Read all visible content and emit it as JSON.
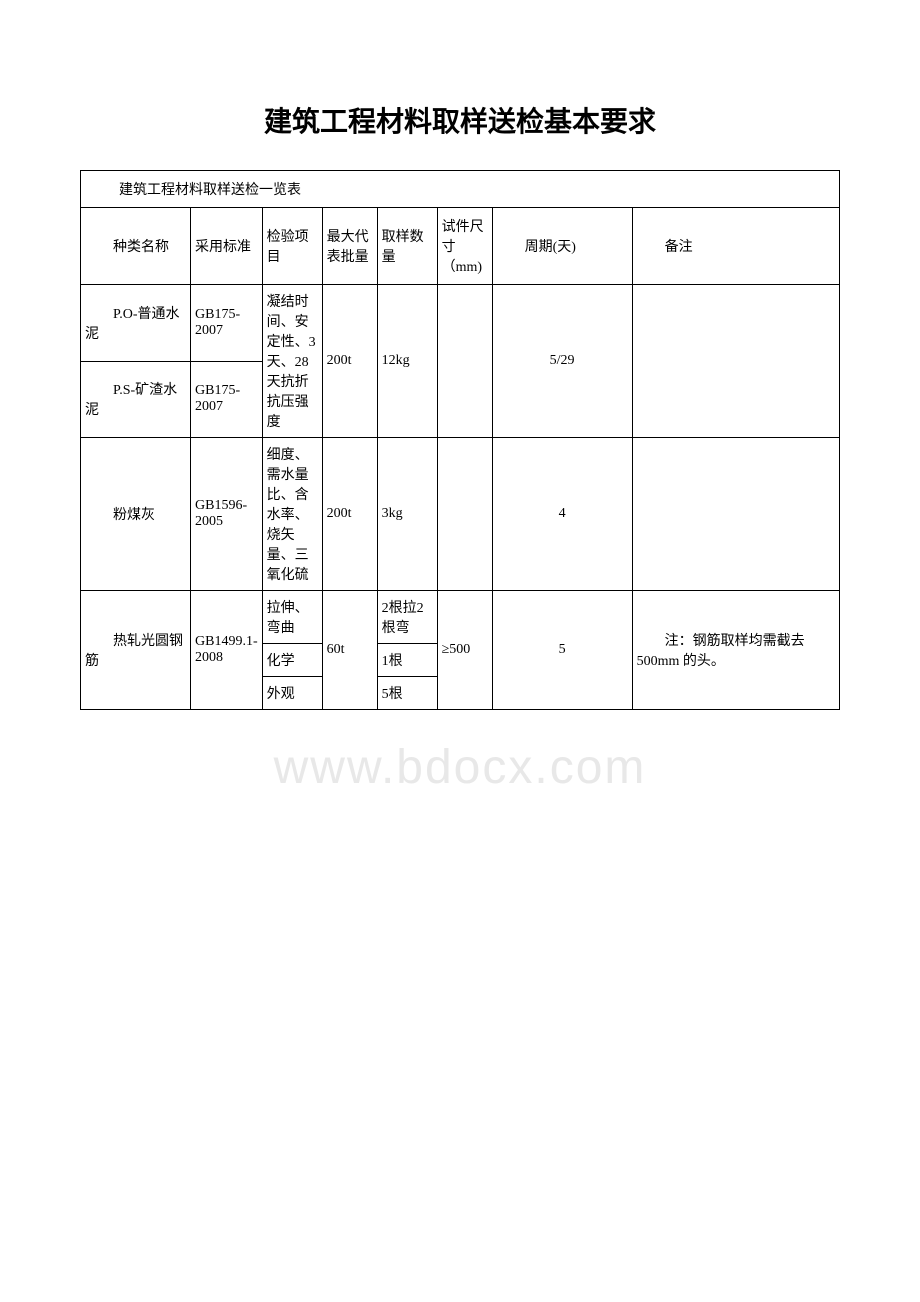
{
  "title": "建筑工程材料取样送检基本要求",
  "table_caption": "建筑工程材料取样送检一览表",
  "headers": {
    "name": "种类名称",
    "standard": "采用标准",
    "test_item": "检验项目",
    "max_batch": "最大代表批量",
    "sample_qty": "取样数量",
    "spec_size": "试件尺寸（mm)",
    "period": "周期(天)",
    "remark": "备注"
  },
  "rows": {
    "r1": {
      "name": "P.O-普通水泥",
      "standard": "GB175-2007",
      "test_item": "凝结时间、安定性、3天、28天抗折抗压强度",
      "max_batch": "200t",
      "sample_qty": "12kg",
      "spec_size": "",
      "period": "5/29",
      "remark": ""
    },
    "r2": {
      "name": "P.S-矿渣水泥",
      "standard": "GB175-2007"
    },
    "r3": {
      "name": "粉煤灰",
      "standard": "GB1596-2005",
      "test_item": "细度、需水量比、含水率、烧矢量、三氧化硫",
      "max_batch": "200t",
      "sample_qty": "3kg",
      "spec_size": "",
      "period": "4",
      "remark": ""
    },
    "r4": {
      "name": "热轧光圆钢筋",
      "standard": "GB1499.1-2008",
      "test_item1": "拉伸、弯曲",
      "test_item2": "化学",
      "test_item3": "外观",
      "max_batch": "60t",
      "sample_qty1": "2根拉2根弯",
      "sample_qty2": "1根",
      "sample_qty3": "5根",
      "spec_size": "≥500",
      "period": "5",
      "remark": "注：钢筋取样均需截去500mm 的头。"
    }
  }
}
